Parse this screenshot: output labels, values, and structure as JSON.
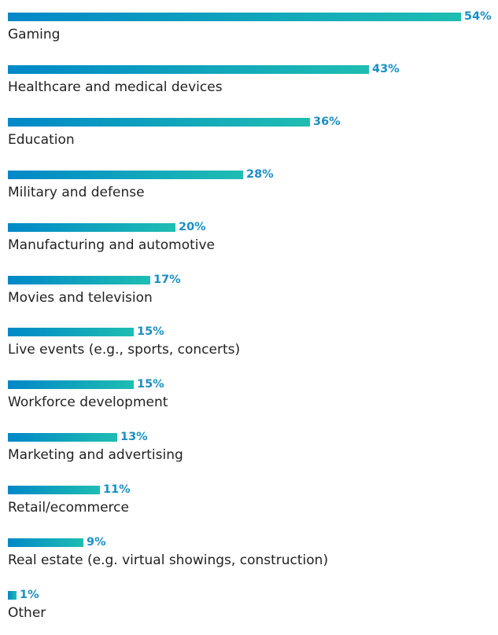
{
  "colors": {
    "bar_start": "#0088c8",
    "bar_end": "#1fbdb2",
    "value_text": "#1a8fc3",
    "label_text": "#222222"
  },
  "chart_data": {
    "type": "bar",
    "orientation": "horizontal",
    "title": "",
    "xlabel": "",
    "ylabel": "",
    "grid": false,
    "xlim": [
      0,
      54
    ],
    "categories": [
      "Gaming",
      "Healthcare and medical devices",
      "Education",
      "Military and defense",
      "Manufacturing and automotive",
      "Movies and television",
      "Live events (e.g., sports, concerts)",
      "Workforce development",
      "Marketing and advertising",
      "Retail/ecommerce",
      "Real estate (e.g. virtual showings, construction)",
      "Other"
    ],
    "values": [
      54,
      43,
      36,
      28,
      20,
      17,
      15,
      15,
      13,
      11,
      9,
      1
    ],
    "value_labels": [
      "54%",
      "43%",
      "36%",
      "28%",
      "20%",
      "17%",
      "15%",
      "15%",
      "13%",
      "11%",
      "9%",
      "1%"
    ]
  }
}
